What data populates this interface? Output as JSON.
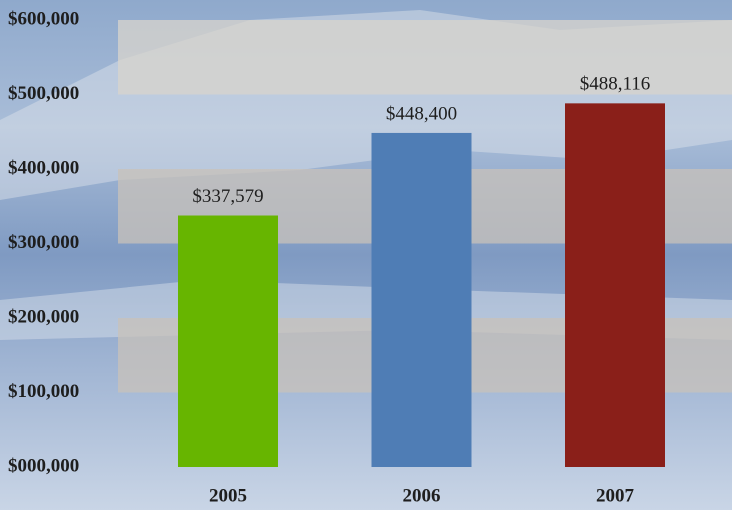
{
  "chart_data": {
    "type": "bar",
    "categories": [
      "2005",
      "2006",
      "2007"
    ],
    "values": [
      337579,
      448400,
      488116
    ],
    "value_labels": [
      "$337,579",
      "$448,400",
      "$488,116"
    ],
    "colors": [
      "#67b500",
      "#4f7db5",
      "#8a1f19"
    ],
    "ylim": [
      0,
      600000
    ],
    "yticks": [
      {
        "value": 0,
        "label": "$000,000"
      },
      {
        "value": 100000,
        "label": "$100,000"
      },
      {
        "value": 200000,
        "label": "$200,000"
      },
      {
        "value": 300000,
        "label": "$300,000"
      },
      {
        "value": 400000,
        "label": "$400,000"
      },
      {
        "value": 500000,
        "label": "$500,000"
      },
      {
        "value": 600000,
        "label": "$600,000"
      }
    ],
    "grid": "bands"
  }
}
